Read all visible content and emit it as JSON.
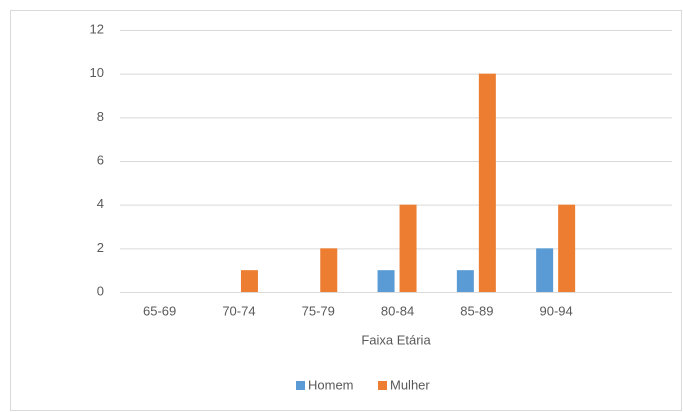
{
  "chart_data": {
    "type": "bar",
    "categories": [
      "65-69",
      "70-74",
      "75-79",
      "80-84",
      "85-89",
      "90-94"
    ],
    "series": [
      {
        "name": "Homem",
        "color": "#5b9bd5",
        "values": [
          0,
          0,
          0,
          1,
          1,
          2
        ]
      },
      {
        "name": "Mulher",
        "color": "#ed7d31",
        "values": [
          0,
          1,
          2,
          4,
          10,
          4
        ]
      }
    ],
    "x_label": "Faixa Etária",
    "ylim": [
      0,
      12
    ],
    "yticks": [
      0,
      2,
      4,
      6,
      8,
      10,
      12
    ],
    "grid": true,
    "legend": "bottom"
  }
}
